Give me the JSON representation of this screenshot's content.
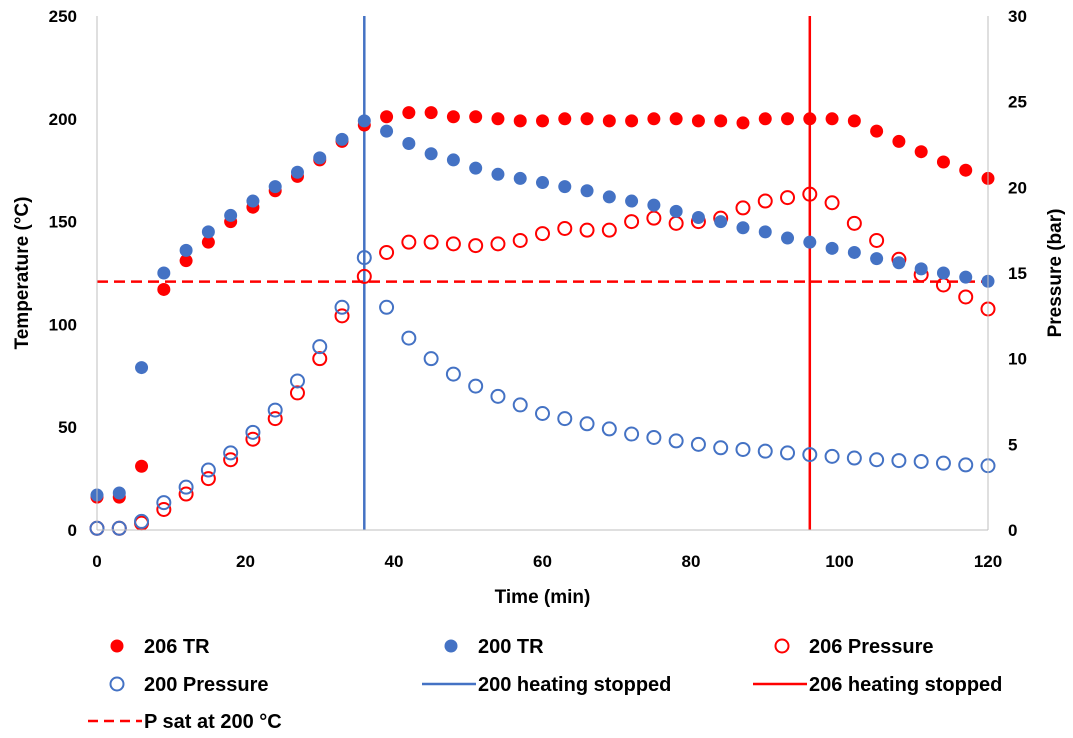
{
  "chart_data": {
    "type": "scatter",
    "xlabel": "Time (min)",
    "ylabel": "Temperature (°C)",
    "y2label": "Pressure (bar)",
    "xlim": [
      0,
      120
    ],
    "ylim": [
      0,
      250
    ],
    "y2lim": [
      0,
      30
    ],
    "x_ticks": [
      "0",
      "20",
      "40",
      "60",
      "80",
      "100",
      "120"
    ],
    "y_ticks": [
      "0",
      "50",
      "100",
      "150",
      "200",
      "250"
    ],
    "y2_ticks": [
      "0",
      "5",
      "10",
      "15",
      "20",
      "25",
      "30"
    ],
    "grid": false,
    "legend_position": "bottom",
    "series": [
      {
        "name": "206 TR",
        "axis": "left",
        "marker": "filled",
        "color": "#ff0000",
        "x": [
          0,
          3,
          6,
          9,
          12,
          15,
          18,
          21,
          24,
          27,
          30,
          33,
          36,
          39,
          42,
          45,
          48,
          51,
          54,
          57,
          60,
          63,
          66,
          69,
          72,
          75,
          78,
          81,
          84,
          87,
          90,
          93,
          96,
          99,
          102,
          105,
          108,
          111,
          114,
          117,
          120
        ],
        "y": [
          16,
          16,
          31,
          117,
          131,
          140,
          150,
          157,
          165,
          172,
          180,
          189,
          197,
          201,
          203,
          203,
          201,
          201,
          200,
          199,
          199,
          200,
          200,
          199,
          199,
          200,
          200,
          199,
          199,
          198,
          200,
          200,
          200,
          200,
          199,
          194,
          189,
          184,
          179,
          175,
          171
        ]
      },
      {
        "name": "200 TR",
        "axis": "left",
        "marker": "filled",
        "color": "#4472c4",
        "x": [
          0,
          3,
          6,
          9,
          12,
          15,
          18,
          21,
          24,
          27,
          30,
          33,
          36,
          39,
          42,
          45,
          48,
          51,
          54,
          57,
          60,
          63,
          66,
          69,
          72,
          75,
          78,
          81,
          84,
          87,
          90,
          93,
          96,
          99,
          102,
          105,
          108,
          111,
          114,
          117,
          120
        ],
        "y": [
          17,
          18,
          79,
          125,
          136,
          145,
          153,
          160,
          167,
          174,
          181,
          190,
          199,
          194,
          188,
          183,
          180,
          176,
          173,
          171,
          169,
          167,
          165,
          162,
          160,
          158,
          155,
          152,
          150,
          147,
          145,
          142,
          140,
          137,
          135,
          132,
          130,
          127,
          125,
          123,
          121
        ]
      },
      {
        "name": "206 Pressure",
        "axis": "right",
        "marker": "open",
        "color": "#ff0000",
        "x": [
          0,
          3,
          6,
          9,
          12,
          15,
          18,
          21,
          24,
          27,
          30,
          33,
          36,
          39,
          42,
          45,
          48,
          51,
          54,
          57,
          60,
          63,
          66,
          69,
          72,
          75,
          78,
          81,
          84,
          87,
          90,
          93,
          96,
          99,
          102,
          105,
          108,
          111,
          114,
          117,
          120
        ],
        "y": [
          0.1,
          0.1,
          0.4,
          1.2,
          2.1,
          3.0,
          4.1,
          5.3,
          6.5,
          8.0,
          10.0,
          12.5,
          14.8,
          16.2,
          16.8,
          16.8,
          16.7,
          16.6,
          16.7,
          16.9,
          17.3,
          17.6,
          17.5,
          17.5,
          18.0,
          18.2,
          17.9,
          18.0,
          18.2,
          18.8,
          19.2,
          19.4,
          19.6,
          19.1,
          17.9,
          16.9,
          15.8,
          14.9,
          14.3,
          13.6,
          12.9
        ]
      },
      {
        "name": "200 Pressure",
        "axis": "right",
        "marker": "open",
        "color": "#4472c4",
        "x": [
          0,
          3,
          6,
          9,
          12,
          15,
          18,
          21,
          24,
          27,
          30,
          33,
          36,
          39,
          42,
          45,
          48,
          51,
          54,
          57,
          60,
          63,
          66,
          69,
          72,
          75,
          78,
          81,
          84,
          87,
          90,
          93,
          96,
          99,
          102,
          105,
          108,
          111,
          114,
          117,
          120
        ],
        "y": [
          0.1,
          0.1,
          0.5,
          1.6,
          2.5,
          3.5,
          4.5,
          5.7,
          7.0,
          8.7,
          10.7,
          13.0,
          15.9,
          13.0,
          11.2,
          10.0,
          9.1,
          8.4,
          7.8,
          7.3,
          6.8,
          6.5,
          6.2,
          5.9,
          5.6,
          5.4,
          5.2,
          5.0,
          4.8,
          4.7,
          4.6,
          4.5,
          4.4,
          4.3,
          4.2,
          4.1,
          4.05,
          4.0,
          3.9,
          3.8,
          3.75
        ]
      }
    ],
    "reference_lines": [
      {
        "name": "200 heating stopped",
        "orientation": "vertical",
        "x": 36,
        "color": "#4472c4",
        "style": "solid"
      },
      {
        "name": "206 heating stopped",
        "orientation": "vertical",
        "x": 96,
        "color": "#ff0000",
        "style": "solid"
      },
      {
        "name": "P sat at 200 °C",
        "orientation": "horizontal",
        "axis": "right",
        "y": 14.5,
        "color": "#ff0000",
        "style": "dashed"
      }
    ]
  }
}
